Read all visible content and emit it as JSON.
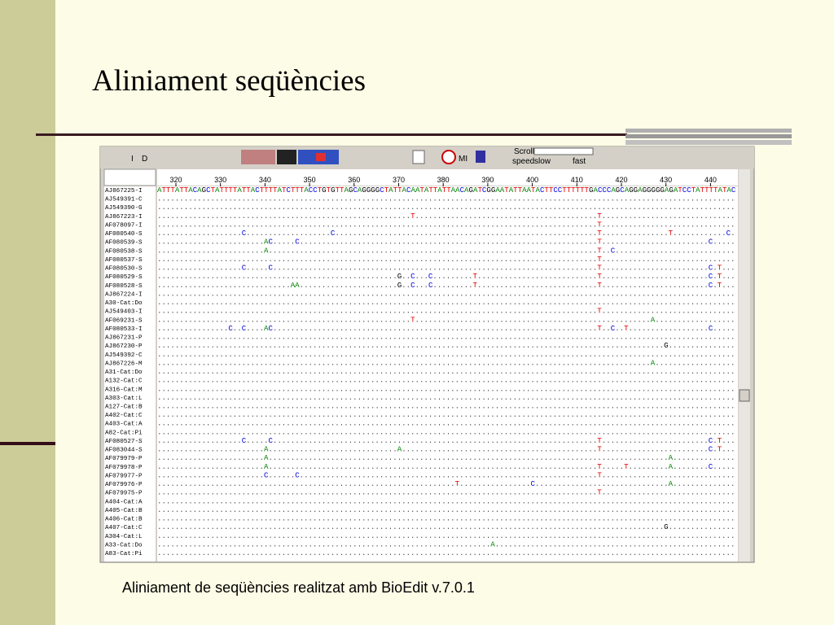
{
  "slide": {
    "title": "Aliniament seqüències",
    "caption": "Aliniament de seqüències realitzat amb BioEdit v.7.0.1"
  },
  "window": {
    "toolbar": [
      "I",
      "D",
      "MI",
      "Scroll",
      "speed",
      "slow",
      "fast"
    ],
    "ruler": [
      320,
      330,
      340,
      350,
      360,
      370,
      380,
      390,
      400,
      410,
      420,
      430,
      440
    ],
    "sequences": [
      {
        "name": "AJ867225-I",
        "seq": "ATTTATTACAGCTATTTTATTACTTTTATCTTTACCTGTGTTAGCAGGGGCTATTACAATATTATTAACAGATCGGAATATTAATACTTCCTTTTTTGACCCAGCAGGAGGGGGAGATCCTATTTTATAC"
      },
      {
        "name": "AJ549391-C",
        "seq": ".................................................................................................................................."
      },
      {
        "name": "AJ549390-G",
        "seq": ".................................................................................................................................."
      },
      {
        "name": "AJ867223-I",
        "seq": ".........................................................T.........................................T.............................."
      },
      {
        "name": "AF078097-I",
        "seq": "...................................................................................................T.............................."
      },
      {
        "name": "AF080540-S",
        "seq": "...................C...................C...........................................................T...............T............C."
      },
      {
        "name": "AF080539-S",
        "seq": "........................AC.....C...................................................................T........................C....."
      },
      {
        "name": "AF080538-S",
        "seq": "........................A..........................................................................T..C..........................."
      },
      {
        "name": "AF080537-S",
        "seq": "...................................................................................................T.............................."
      },
      {
        "name": "AF080530-S",
        "seq": "...................C.....C.........................................................................T........................C.T..."
      },
      {
        "name": "AF080529-S",
        "seq": "......................................................G..C...C.........T...........................T........................C.T..."
      },
      {
        "name": "AF080528-S",
        "seq": "..............................AA......................G..C...C.........T...........................T........................C.T..."
      },
      {
        "name": "AJ867224-I",
        "seq": ".................................................................................................................................."
      },
      {
        "name": "A30-Cat:Do",
        "seq": ".................................................................................................................................."
      },
      {
        "name": "AJ549403-I",
        "seq": "...................................................................................................T.............................."
      },
      {
        "name": "AF069231-S",
        "seq": ".........................................................T.....................................................A.................."
      },
      {
        "name": "AF080533-I",
        "seq": "................C..C....AC.........................................................................T..C..T..................C....."
      },
      {
        "name": "AJ867231-P",
        "seq": ".................................................................................................................................."
      },
      {
        "name": "AJ867230-P",
        "seq": "..................................................................................................................G..............."
      },
      {
        "name": "AJ549392-C",
        "seq": ".................................................................................................................................."
      },
      {
        "name": "AJ867226-M",
        "seq": "...............................................................................................................A.................."
      },
      {
        "name": "A31-Cat:Do",
        "seq": ".................................................................................................................................."
      },
      {
        "name": "A132-Cat:C",
        "seq": ".................................................................................................................................."
      },
      {
        "name": "A316-Cat:M",
        "seq": ".................................................................................................................................."
      },
      {
        "name": "A303-Cat:L",
        "seq": ".................................................................................................................................."
      },
      {
        "name": "A127-Cat:B",
        "seq": ".................................................................................................................................."
      },
      {
        "name": "A402-Cat:C",
        "seq": ".................................................................................................................................."
      },
      {
        "name": "A403-Cat:A",
        "seq": ".................................................................................................................................."
      },
      {
        "name": "A82-Cat:Pi",
        "seq": ".................................................................................................................................."
      },
      {
        "name": "AF080527-S",
        "seq": "...................C.....C.........................................................................T........................C.T..."
      },
      {
        "name": "AF083044-S",
        "seq": "........................A.............................A............................................T........................C.T..."
      },
      {
        "name": "AF079979-P",
        "seq": "........................A..........................................................................................A.............."
      },
      {
        "name": "AF079978-P",
        "seq": "........................A..........................................................................T.....T.........A........C....."
      },
      {
        "name": "AF079977-P",
        "seq": "........................C......C...................................................................T.............................."
      },
      {
        "name": "AF079976-P",
        "seq": "...................................................................T................C..............................A.............."
      },
      {
        "name": "AF079975-P",
        "seq": "...................................................................................................T.............................."
      },
      {
        "name": "A404-Cat:A",
        "seq": ".................................................................................................................................."
      },
      {
        "name": "A405-Cat:B",
        "seq": ".................................................................................................................................."
      },
      {
        "name": "A406-Cat:B",
        "seq": ".................................................................................................................................."
      },
      {
        "name": "A407-Cat:C",
        "seq": "..................................................................................................................G..............."
      },
      {
        "name": "A304-Cat:L",
        "seq": ".................................................................................................................................."
      },
      {
        "name": "A33-Cat:Do",
        "seq": "...........................................................................A......................................................"
      },
      {
        "name": "A83-Cat:Pi",
        "seq": ".................................................................................................................................."
      }
    ]
  }
}
